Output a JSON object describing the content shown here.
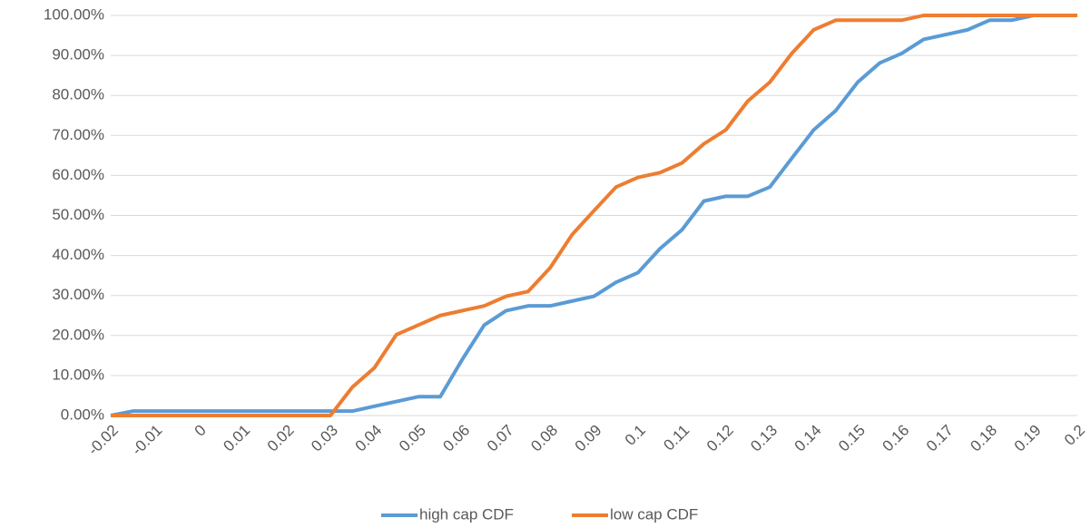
{
  "chart_data": {
    "type": "line",
    "categories": [
      "-0.02",
      null,
      "-0.01",
      null,
      "0",
      null,
      "0.01",
      null,
      "0.02",
      null,
      "0.03",
      null,
      "0.04",
      null,
      "0.05",
      null,
      "0.06",
      null,
      "0.07",
      null,
      "0.08",
      null,
      "0.09",
      null,
      "0.1",
      null,
      "0.11",
      null,
      "0.12",
      null,
      "0.13",
      null,
      "0.14",
      null,
      "0.15",
      null,
      "0.16",
      null,
      "0.17",
      null,
      "0.18",
      null,
      "0.19",
      null,
      "0.2"
    ],
    "series": [
      {
        "name": "high cap CDF",
        "color": "#5b9bd5",
        "values": [
          0,
          1.1,
          1.1,
          1.1,
          1.1,
          1.1,
          1.1,
          1.1,
          1.1,
          1.1,
          1.1,
          1.1,
          2.3,
          3.5,
          4.7,
          4.7,
          14,
          22.6,
          26.2,
          27.4,
          27.4,
          28.6,
          29.8,
          33.3,
          35.7,
          41.7,
          46.4,
          53.6,
          54.8,
          54.8,
          57.1,
          64.3,
          71.4,
          76.2,
          83.3,
          88.1,
          90.5,
          94,
          95.2,
          96.4,
          98.8,
          98.8,
          100,
          100,
          100
        ]
      },
      {
        "name": "low cap CDF",
        "color": "#ed7d31",
        "values": [
          0,
          0,
          0,
          0,
          0,
          0,
          0,
          0,
          0,
          0,
          0,
          7.1,
          11.9,
          20.2,
          22.6,
          25,
          26.2,
          27.4,
          29.8,
          31,
          36.9,
          45.2,
          51.2,
          57.1,
          59.5,
          60.7,
          63.1,
          67.9,
          71.4,
          78.6,
          83.3,
          90.5,
          96.4,
          98.8,
          98.8,
          98.8,
          98.8,
          100,
          100,
          100,
          100,
          100,
          100,
          100,
          100
        ]
      }
    ],
    "ylim": [
      0,
      100
    ],
    "yticks": [
      {
        "value": 0,
        "label": "0.00%"
      },
      {
        "value": 10,
        "label": "10.00%"
      },
      {
        "value": 20,
        "label": "20.00%"
      },
      {
        "value": 30,
        "label": "30.00%"
      },
      {
        "value": 40,
        "label": "40.00%"
      },
      {
        "value": 50,
        "label": "50.00%"
      },
      {
        "value": 60,
        "label": "60.00%"
      },
      {
        "value": 70,
        "label": "70.00%"
      },
      {
        "value": 80,
        "label": "80.00%"
      },
      {
        "value": 90,
        "label": "90.00%"
      },
      {
        "value": 100,
        "label": "100.00%"
      }
    ],
    "grid": true,
    "legend": "bottom"
  }
}
